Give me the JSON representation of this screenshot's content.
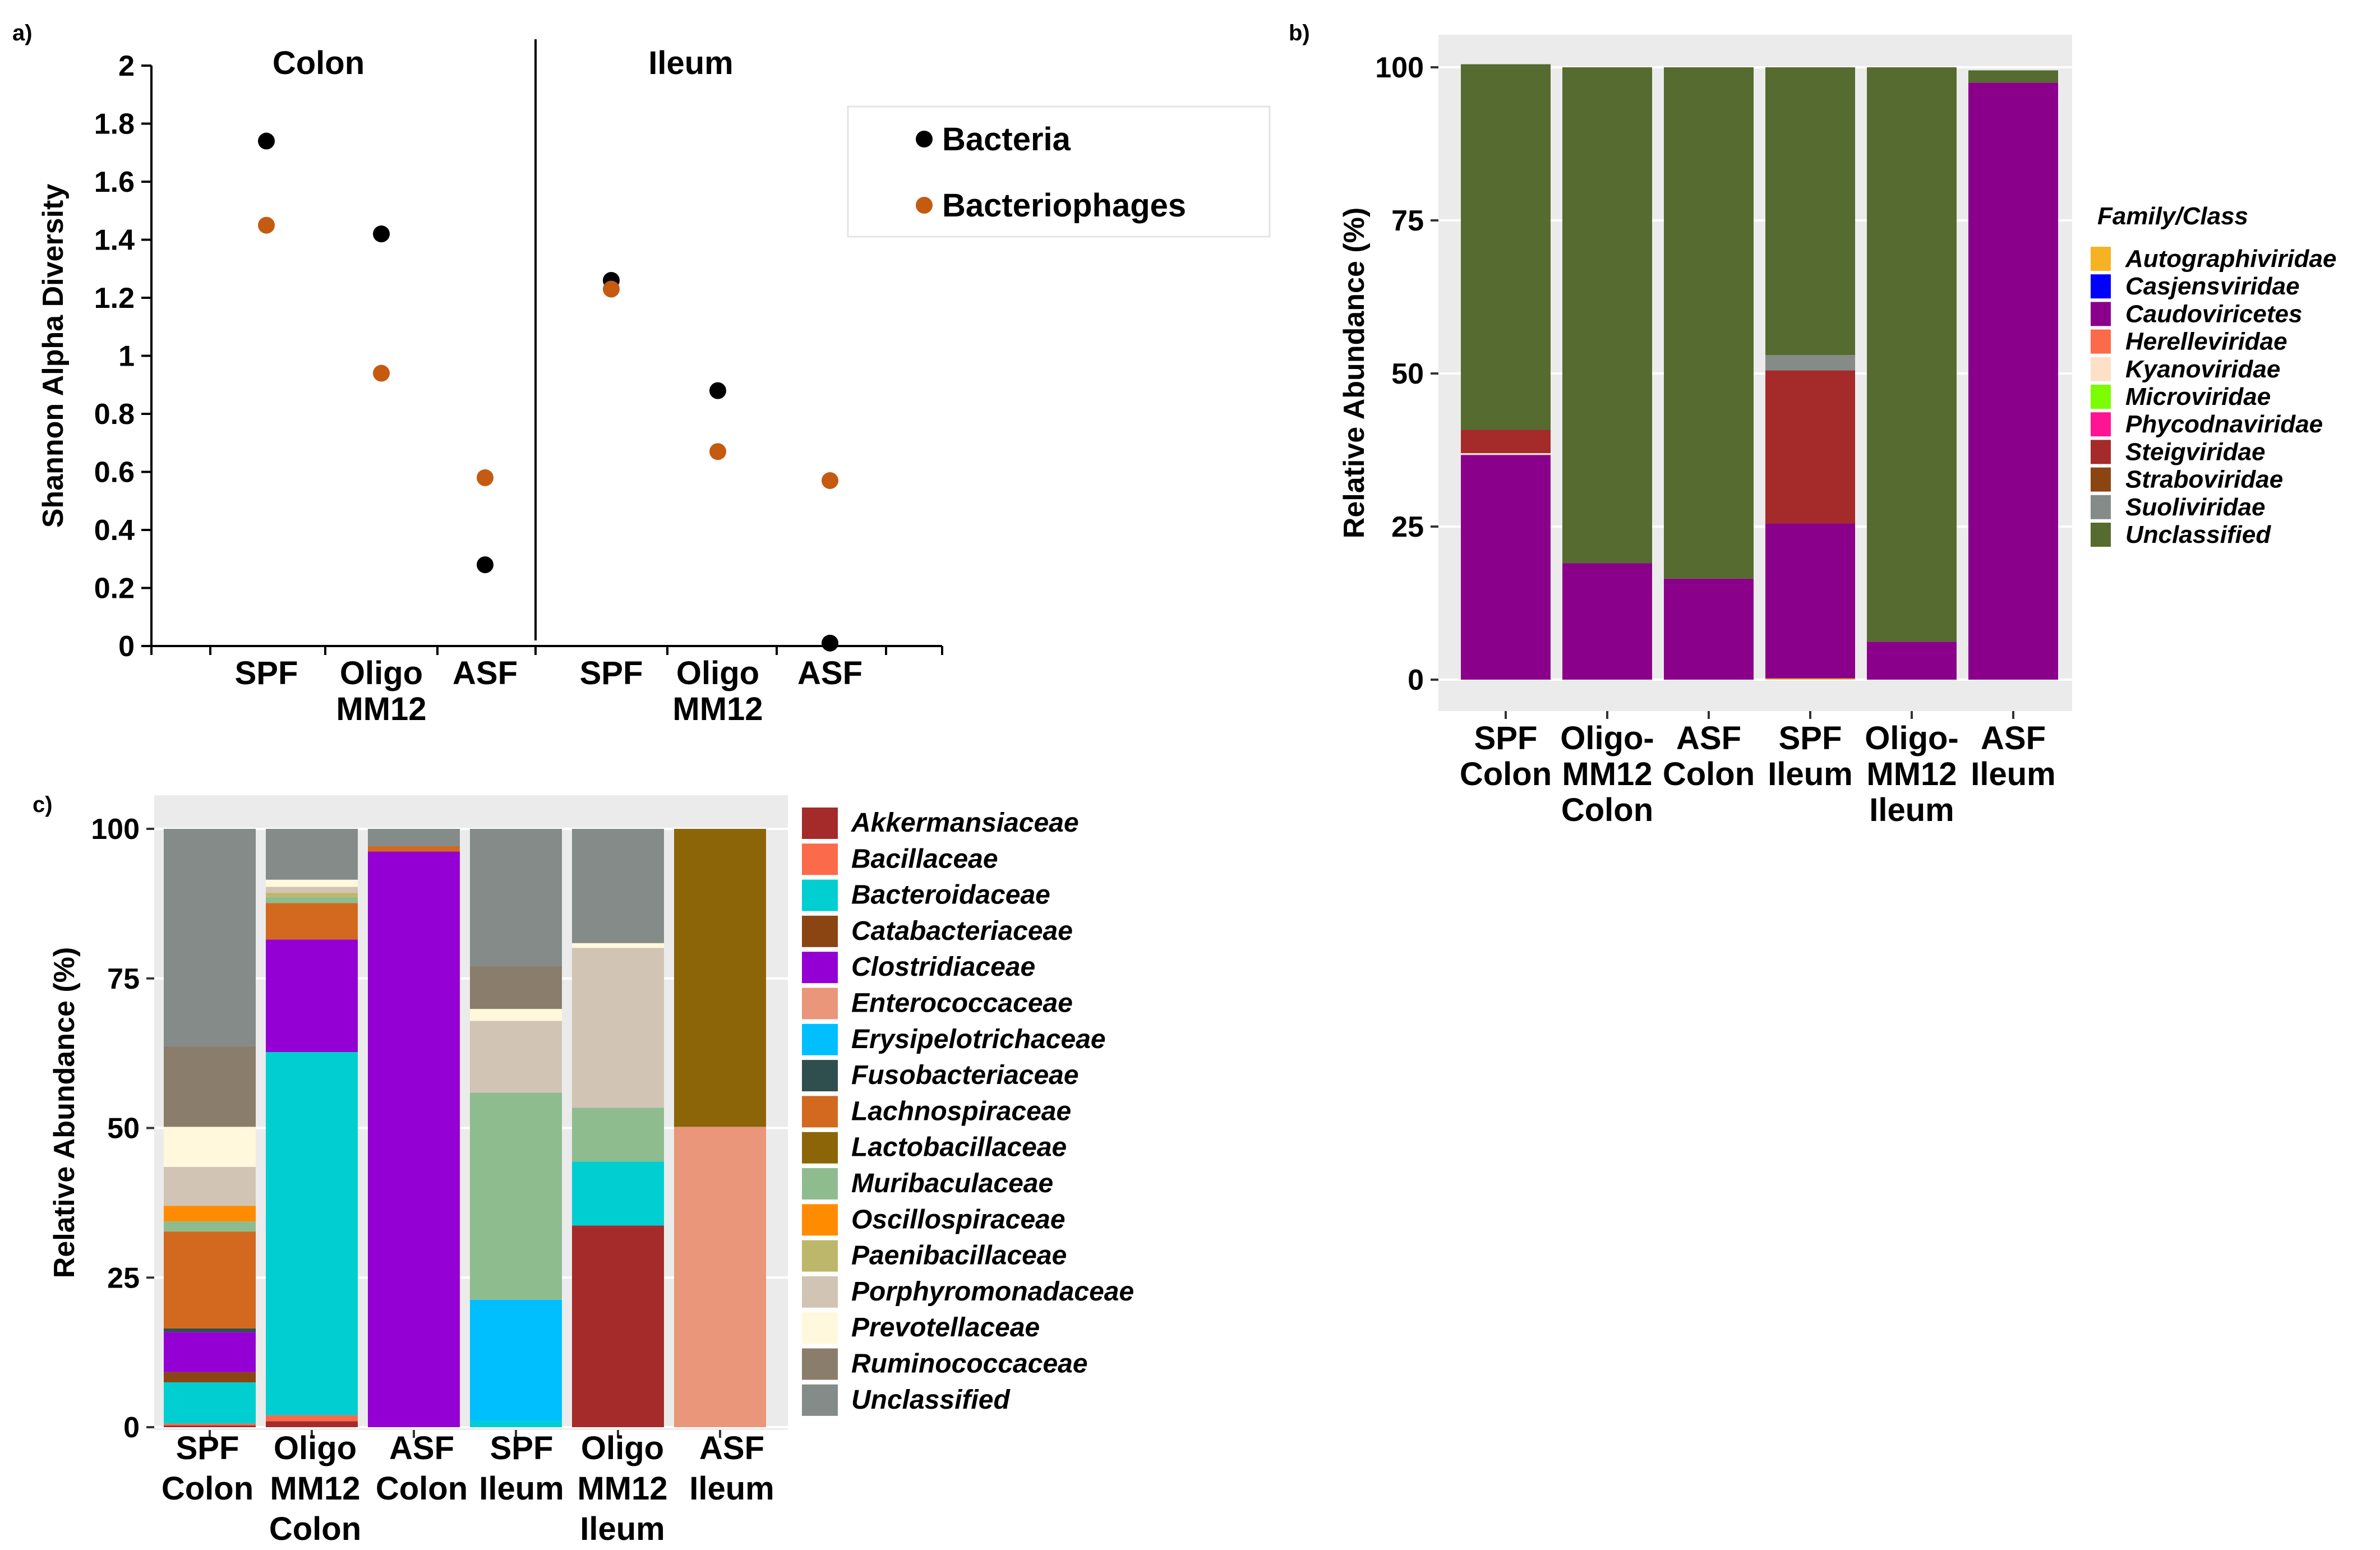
{
  "chart_data": [
    {
      "type": "scatter",
      "panel_label": "a)",
      "ylabel": "Shannon Alpha Diversity",
      "ylim": [
        0,
        2
      ],
      "yticks": [
        0,
        0.2,
        0.4,
        0.6,
        0.8,
        1,
        1.2,
        1.4,
        1.6,
        1.8,
        2
      ],
      "ytick_labels": [
        "0",
        "0.2",
        "0.4",
        "0.6",
        "0.8",
        "1",
        "1.2",
        "1.4",
        "1.6",
        "1.8",
        "2"
      ],
      "group_titles": [
        "Colon",
        "Ileum"
      ],
      "categories": [
        [
          "SPF"
        ],
        [
          "Oligo",
          "MM12"
        ],
        [
          "ASF"
        ],
        [
          "SPF"
        ],
        [
          "Oligo",
          "MM12"
        ],
        [
          "ASF"
        ]
      ],
      "series": [
        {
          "name": "Bacteria",
          "color": "#000000",
          "values": [
            1.74,
            1.42,
            0.28,
            1.26,
            0.88,
            0.01
          ]
        },
        {
          "name": "Bacteriophages",
          "color": "#c55a11",
          "values": [
            1.45,
            0.94,
            0.58,
            1.23,
            0.67,
            0.57
          ]
        }
      ]
    },
    {
      "type": "bar",
      "stacked": true,
      "panel_label": "b)",
      "ylabel": "Relative Abundance (%)",
      "ylim": [
        0,
        100
      ],
      "yticks": [
        0,
        25,
        50,
        75,
        100
      ],
      "ytick_labels": [
        "0",
        "25",
        "50",
        "75",
        "100"
      ],
      "legend_title": "Family/Class",
      "categories": [
        [
          "SPF",
          "Colon"
        ],
        [
          "Oligo-",
          "MM12",
          "Colon"
        ],
        [
          "ASF",
          "Colon"
        ],
        [
          "SPF",
          "Ileum"
        ],
        [
          "Oligo-",
          "MM12",
          "Ileum"
        ],
        [
          "ASF",
          "Ileum"
        ]
      ],
      "series": [
        {
          "name": "Autographiviridae",
          "color": "#f5b324",
          "values": [
            0,
            0,
            0,
            0.2,
            0,
            0
          ]
        },
        {
          "name": "Casjensviridae",
          "color": "#0000ff",
          "values": [
            0,
            0,
            0,
            0,
            0,
            0
          ]
        },
        {
          "name": "Caudoviricetes",
          "color": "#8b008b",
          "values": [
            36.7,
            19,
            16.5,
            25.3,
            6.2,
            97.5
          ]
        },
        {
          "name": "Herelleviridae",
          "color": "#fb6a4a",
          "values": [
            0,
            0,
            0,
            0,
            0,
            0
          ]
        },
        {
          "name": "Kyanoviridae",
          "color": "#fde0c5",
          "values": [
            0.3,
            0,
            0,
            0,
            0,
            0
          ]
        },
        {
          "name": "Microviridae",
          "color": "#7cfc00",
          "values": [
            0,
            0,
            0,
            0,
            0,
            0
          ]
        },
        {
          "name": "Phycodnaviridae",
          "color": "#ff1493",
          "values": [
            0,
            0,
            0,
            0,
            0,
            0
          ]
        },
        {
          "name": "Steigviridae",
          "color": "#a52a2a",
          "values": [
            3.8,
            0,
            0,
            25,
            0,
            0
          ]
        },
        {
          "name": "Straboviridae",
          "color": "#8b4513",
          "values": [
            0,
            0,
            0,
            0,
            0,
            0
          ]
        },
        {
          "name": "Suoliviridae",
          "color": "#848b88",
          "values": [
            0,
            0,
            0,
            2.5,
            0,
            0
          ]
        },
        {
          "name": "Unclassified",
          "color": "#556b2f",
          "values": [
            59.7,
            81,
            83.5,
            47,
            93.8,
            2
          ]
        }
      ]
    },
    {
      "type": "bar",
      "stacked": true,
      "panel_label": "c)",
      "ylabel": "Relative Abundance (%)",
      "ylim": [
        0,
        100
      ],
      "yticks": [
        0,
        25,
        50,
        75,
        100
      ],
      "ytick_labels": [
        "0",
        "25",
        "50",
        "75",
        "100"
      ],
      "categories": [
        [
          "SPF",
          "Colon"
        ],
        [
          "Oligo",
          "MM12",
          "Colon"
        ],
        [
          "ASF",
          "Colon"
        ],
        [
          "SPF",
          "Ileum"
        ],
        [
          "Oligo",
          "MM12",
          "Ileum"
        ],
        [
          "ASF",
          "Ileum"
        ]
      ],
      "series": [
        {
          "name": "Akkermansiaceae",
          "color": "#a52a2a",
          "values": [
            0.3,
            1,
            0,
            0,
            33.7,
            0
          ]
        },
        {
          "name": "Bacillaceae",
          "color": "#fb6a4a",
          "values": [
            0.3,
            1,
            0,
            0,
            0,
            0
          ]
        },
        {
          "name": "Bacteroidaceae",
          "color": "#00ced1",
          "values": [
            6.9,
            60.7,
            0,
            1,
            10.7,
            0
          ]
        },
        {
          "name": "Catabacteriaceae",
          "color": "#8b4513",
          "values": [
            1.7,
            0,
            0,
            0,
            0,
            0
          ]
        },
        {
          "name": "Clostridiaceae",
          "color": "#9400d3",
          "values": [
            6.7,
            18.8,
            96.2,
            0,
            0,
            0
          ]
        },
        {
          "name": "Enterococcaceae",
          "color": "#e9967a",
          "values": [
            0,
            0,
            0,
            0,
            0,
            50.2
          ]
        },
        {
          "name": "Erysipelotrichaceae",
          "color": "#00bfff",
          "values": [
            0,
            0,
            0,
            20.3,
            0,
            0
          ]
        },
        {
          "name": "Fusobacteriaceae",
          "color": "#2f4f4f",
          "values": [
            0.6,
            0,
            0,
            0,
            0,
            0
          ]
        },
        {
          "name": "Lachnospiraceae",
          "color": "#d2691e",
          "values": [
            16.2,
            6.1,
            0.9,
            0,
            0,
            0
          ]
        },
        {
          "name": "Lactobacillaceae",
          "color": "#8b6508",
          "values": [
            0,
            0,
            0,
            0,
            0,
            49.8
          ]
        },
        {
          "name": "Muribaculaceae",
          "color": "#8fbc8f",
          "values": [
            1.7,
            1,
            0,
            34.6,
            9,
            0
          ]
        },
        {
          "name": "Oscillospiraceae",
          "color": "#ff8c00",
          "values": [
            2.6,
            0,
            0,
            0,
            0,
            0
          ]
        },
        {
          "name": "Paenibacillaceae",
          "color": "#bdb76b",
          "values": [
            0,
            0.7,
            0,
            0,
            0,
            0
          ]
        },
        {
          "name": "Porphyromonadaceae",
          "color": "#d2c4b4",
          "values": [
            6.5,
            1,
            0,
            12,
            26.7,
            0
          ]
        },
        {
          "name": "Prevotellaceae",
          "color": "#fff8dc",
          "values": [
            6.7,
            1.2,
            0,
            2,
            0.8,
            0
          ]
        },
        {
          "name": "Ruminococcaceae",
          "color": "#8b7d6b",
          "values": [
            13.5,
            0,
            0,
            7.2,
            0,
            0
          ]
        },
        {
          "name": "Unclassified",
          "color": "#848b88",
          "values": [
            36.3,
            8.5,
            2.9,
            22.9,
            19.1,
            0
          ]
        }
      ]
    }
  ]
}
